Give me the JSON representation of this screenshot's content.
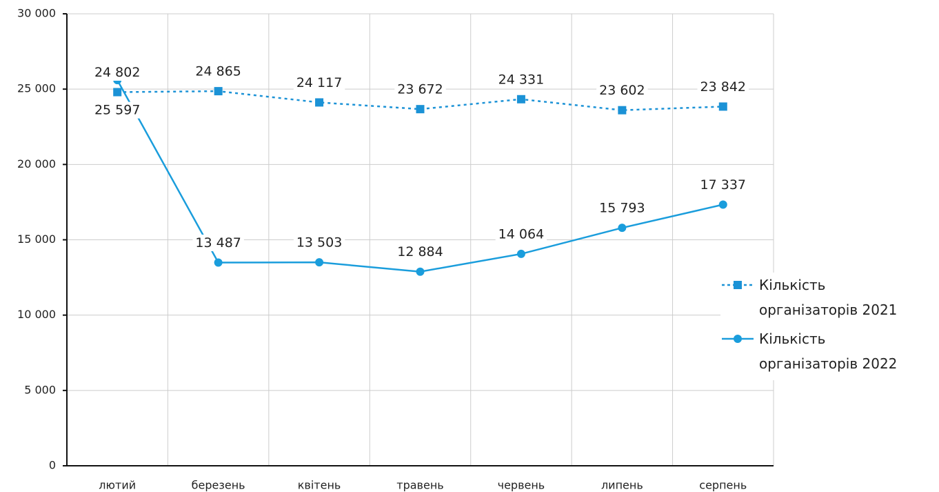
{
  "chart_data": {
    "type": "line",
    "categories": [
      "лютий",
      "березень",
      "квітень",
      "травень",
      "червень",
      "липень",
      "серпень"
    ],
    "series": [
      {
        "name": "Кількість організаторів 2021",
        "color": "#1b92d6",
        "dashed": true,
        "marker": "square",
        "values": [
          24802,
          24865,
          24117,
          23672,
          24331,
          23602,
          23842
        ],
        "value_labels": [
          "24 802",
          "24 865",
          "24 117",
          "23 672",
          "24 331",
          "23 602",
          "23 842"
        ]
      },
      {
        "name": "Кількість організаторів 2022",
        "color": "#1a9ddc",
        "dashed": false,
        "marker": "circle",
        "values": [
          25597,
          13487,
          13503,
          12884,
          14064,
          15793,
          17337
        ],
        "value_labels": [
          "25 597",
          "13 487",
          "13 503",
          "12 884",
          "14 064",
          "15 793",
          "17 337"
        ]
      }
    ],
    "ylim": [
      0,
      30000
    ],
    "yticks": [
      {
        "value": 0,
        "label": "0"
      },
      {
        "value": 5000,
        "label": "5 000"
      },
      {
        "value": 10000,
        "label": "10 000"
      },
      {
        "value": 15000,
        "label": "15 000"
      },
      {
        "value": 20000,
        "label": "20 000"
      },
      {
        "value": 25000,
        "label": "25 000"
      },
      {
        "value": 30000,
        "label": "30 000"
      }
    ],
    "grid": true,
    "legend": "right"
  }
}
